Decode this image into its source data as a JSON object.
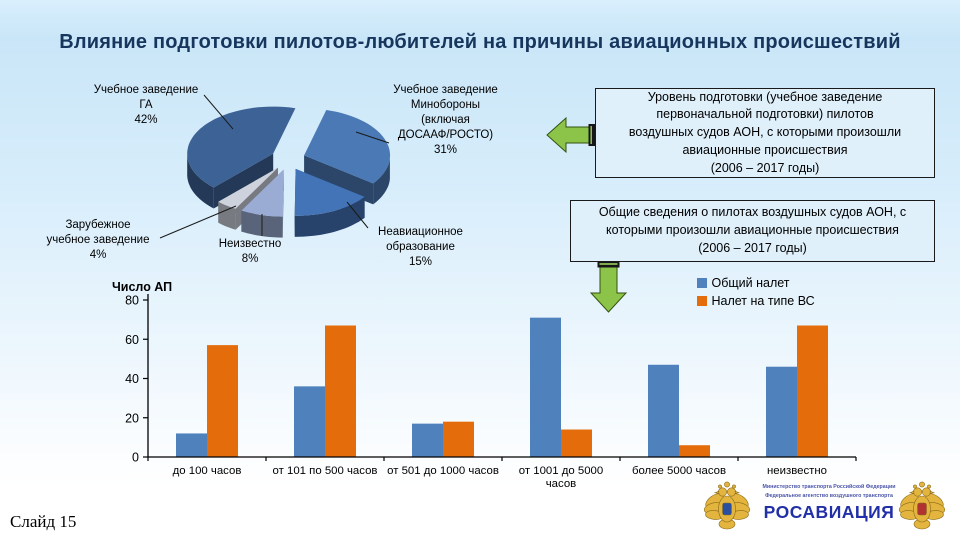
{
  "slide": {
    "title": "Влияние подготовки пилотов-любителей  на причины авиационных происшествий",
    "page_label": "Слайд  15"
  },
  "boxes": {
    "box1": "Уровень  подготовки  (учебное  заведение\nпервоначальной  подготовки)   пилотов\nвоздушных судов АОН,  с которыми  произошли\nавиационные  происшествия\n(2006 – 2017 годы)",
    "box2": "Общие сведения  о пилотах  воздушных судов АОН, с\nкоторыми  произошли  авиационные  происшествия\n(2006 – 2017 годы)"
  },
  "colors": {
    "title_text": "#17365d",
    "arrow_green": "#8cc44a",
    "bar_blue": "#4f81bd",
    "bar_orange": "#e46c0a"
  },
  "chart_data": [
    {
      "type": "pie",
      "labels": [
        "Учебное заведение ГА",
        "Учебное заведение Минобороны (включая ДОСААФ/РОСТО)",
        "Неавиационное образование",
        "Неизвестно",
        "Зарубежное учебное заведение"
      ],
      "values": [
        42,
        31,
        15,
        8,
        4
      ],
      "unit": "%",
      "colors": [
        "#3d6396",
        "#4a79b5",
        "#4374b8",
        "#9aacd4",
        "#cdd2dd"
      ],
      "start_angle_deg": 75,
      "clockwise_order": [
        1,
        2,
        3,
        4,
        0
      ],
      "label_texts": [
        "Учебное заведение\nГА\n42%",
        "Учебное заведение\nМинобороны\n(включая\nДОСААФ/РОСТО)\n31%",
        "Неавиационное\nобразование\n15%",
        "Неизвестно\n8%",
        "Зарубежное\nучебное заведение\n4%"
      ]
    },
    {
      "type": "bar",
      "ylabel": "Число АП",
      "ylim": [
        0,
        80
      ],
      "yticks": [
        0,
        20,
        40,
        60,
        80
      ],
      "legend_position": "top-right",
      "categories": [
        "до 100 часов",
        "от 101 по 500 часов",
        "от 501 до 1000 часов",
        "от 1001 до  5000\nчасов",
        "более 5000 часов",
        "неизвестно"
      ],
      "series": [
        {
          "name": "Общий налет",
          "color": "#4f81bd",
          "values": [
            12,
            36,
            17,
            71,
            47,
            46
          ]
        },
        {
          "name": "Налет  на типе ВС",
          "color": "#e46c0a",
          "values": [
            57,
            67,
            18,
            14,
            6,
            67
          ]
        }
      ]
    }
  ],
  "footer": {
    "ministry_line1": "Министерство транспорта Российской Федерации",
    "ministry_line2": "Федеральное агентство воздушного транспорта",
    "brand": "РОСАВИАЦИЯ"
  }
}
